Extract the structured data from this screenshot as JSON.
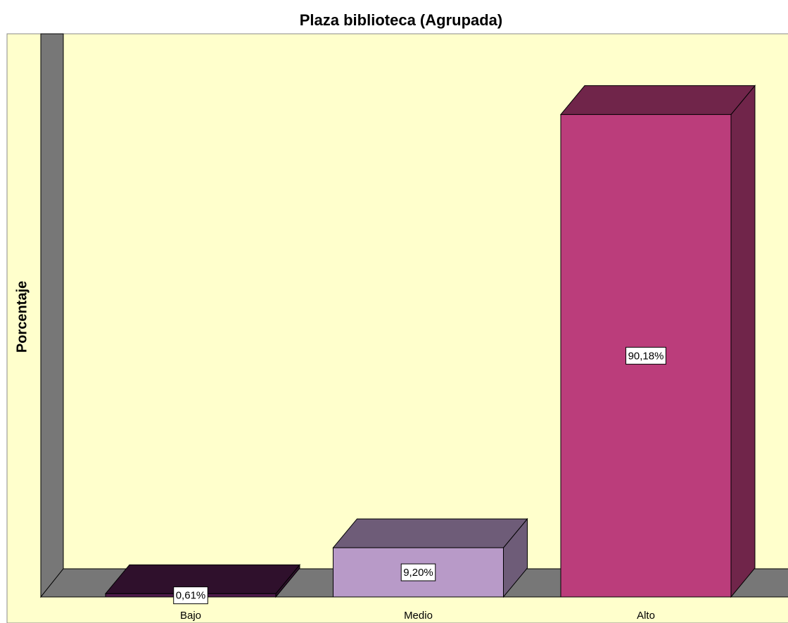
{
  "chart_data": {
    "type": "bar3d",
    "title": "Plaza biblioteca  (Agrupada)",
    "y_label": "Porcentaje",
    "categories": [
      "Bajo",
      "Medio",
      "Alto"
    ],
    "values": [
      0.61,
      9.2,
      90.18
    ],
    "value_labels": [
      "0,61%",
      "9,20%",
      "90,18%"
    ],
    "colors": [
      "#4e1a4a",
      "#b89ac8",
      "#bb3d7b"
    ],
    "ylim": [
      0,
      100
    ]
  }
}
